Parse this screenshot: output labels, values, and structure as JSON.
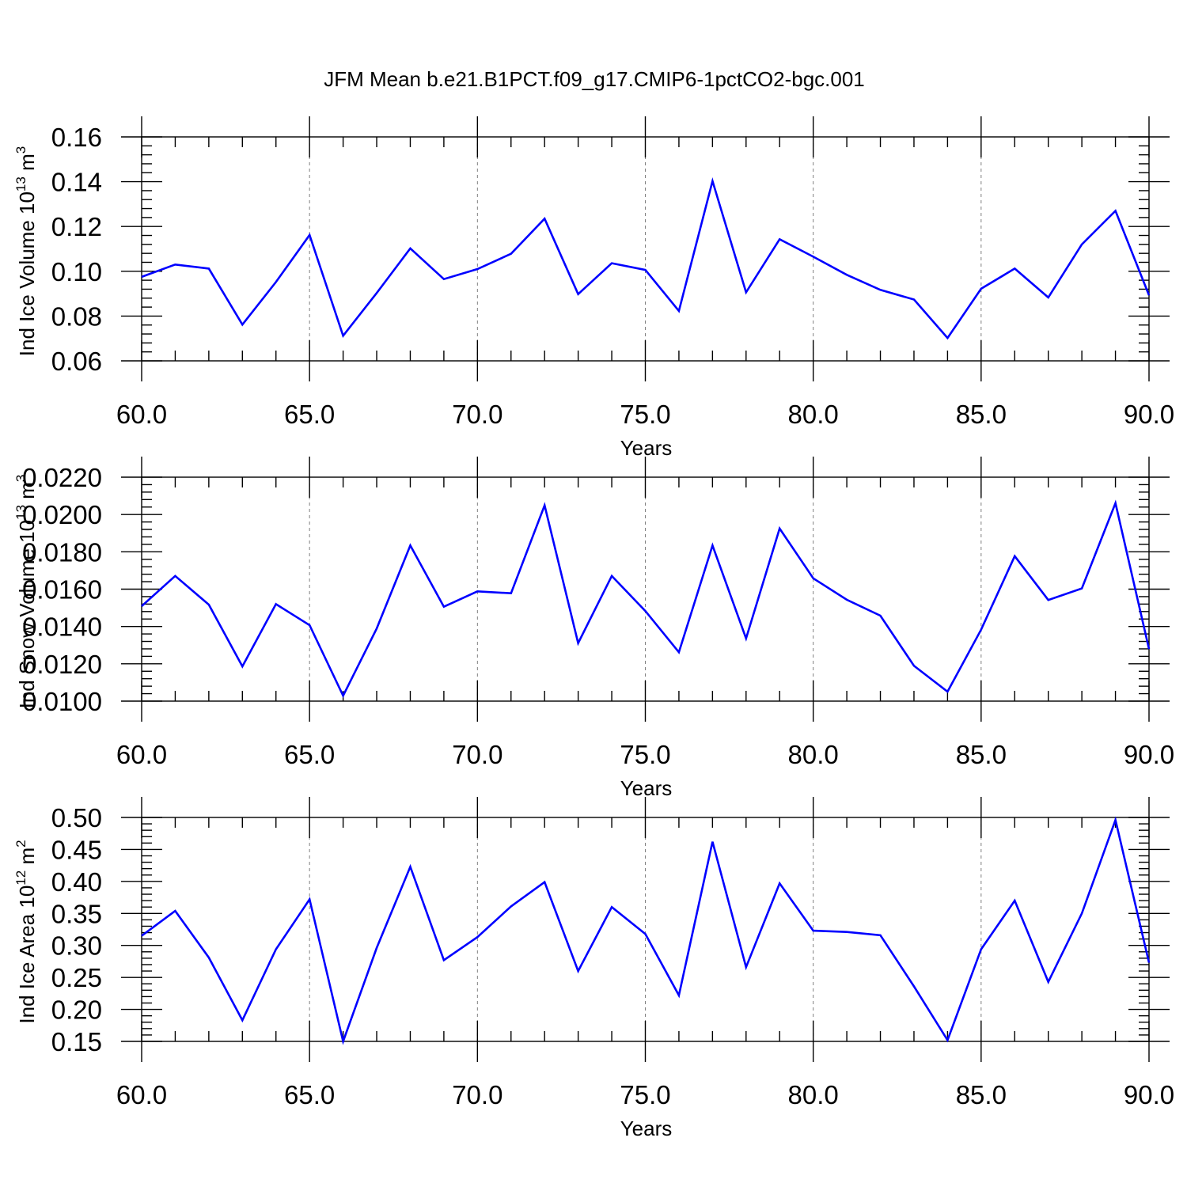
{
  "figure": {
    "title": "JFM Mean b.e21.B1PCT.f09_g17.CMIP6-1pctCO2-bgc.001",
    "line_color": "#0000ff",
    "axis_color": "#000000",
    "grid_color": "#808080"
  },
  "chart_data": [
    {
      "type": "line",
      "xlabel": "Years",
      "ylabel": "Ind Ice Volume 10",
      "ylabel_exp": "13",
      "ylabel_unit": " m",
      "ylabel_unit_exp": "3",
      "xlim": [
        60,
        90
      ],
      "ylim": [
        0.06,
        0.16
      ],
      "xticks": [
        60,
        65,
        70,
        75,
        80,
        85,
        90
      ],
      "xtick_labels": [
        "60.0",
        "65.0",
        "70.0",
        "75.0",
        "80.0",
        "85.0",
        "90.0"
      ],
      "yticks": [
        0.06,
        0.08,
        0.1,
        0.12,
        0.14,
        0.16
      ],
      "ytick_labels": [
        "0.06",
        "0.08",
        "0.10",
        "0.12",
        "0.14",
        "0.16"
      ],
      "x": [
        60,
        61,
        62,
        63,
        64,
        65,
        66,
        67,
        68,
        69,
        70,
        71,
        72,
        73,
        74,
        75,
        76,
        77,
        78,
        79,
        80,
        81,
        82,
        83,
        84,
        85,
        86,
        87,
        88,
        89,
        90
      ],
      "y": [
        0.0975,
        0.103,
        0.1012,
        0.0762,
        0.0952,
        0.1162,
        0.0712,
        0.0903,
        0.1102,
        0.0965,
        0.101,
        0.1078,
        0.1235,
        0.0898,
        0.1036,
        0.1006,
        0.0823,
        0.1403,
        0.0906,
        0.1143,
        0.1065,
        0.0984,
        0.0917,
        0.0874,
        0.0702,
        0.0922,
        0.1012,
        0.0883,
        0.112,
        0.127,
        0.0893
      ],
      "vgrid": [
        65,
        70,
        75,
        80,
        85
      ]
    },
    {
      "type": "line",
      "xlabel": "Years",
      "ylabel": "Ind Snow Volume 10",
      "ylabel_exp": "13",
      "ylabel_unit": " m",
      "ylabel_unit_exp": "3",
      "xlim": [
        60,
        90
      ],
      "ylim": [
        0.01,
        0.022
      ],
      "xticks": [
        60,
        65,
        70,
        75,
        80,
        85,
        90
      ],
      "xtick_labels": [
        "60.0",
        "65.0",
        "70.0",
        "75.0",
        "80.0",
        "85.0",
        "90.0"
      ],
      "yticks": [
        0.01,
        0.012,
        0.014,
        0.016,
        0.018,
        0.02,
        0.022
      ],
      "ytick_labels": [
        "0.0100",
        "0.0120",
        "0.0140",
        "0.0160",
        "0.0180",
        "0.0200",
        "0.0220"
      ],
      "x": [
        60,
        61,
        62,
        63,
        64,
        65,
        66,
        67,
        68,
        69,
        70,
        71,
        72,
        73,
        74,
        75,
        76,
        77,
        78,
        79,
        80,
        81,
        82,
        83,
        84,
        85,
        86,
        87,
        88,
        89,
        90
      ],
      "y": [
        0.01509,
        0.01671,
        0.01517,
        0.01186,
        0.0152,
        0.01407,
        0.01029,
        0.01389,
        0.01834,
        0.01506,
        0.01588,
        0.01578,
        0.02049,
        0.01311,
        0.01671,
        0.01483,
        0.01262,
        0.01834,
        0.01336,
        0.01925,
        0.01658,
        0.01543,
        0.01458,
        0.01189,
        0.01051,
        0.01383,
        0.01777,
        0.01542,
        0.01604,
        0.02061,
        0.01279
      ],
      "vgrid": [
        65,
        70,
        75,
        80,
        85
      ]
    },
    {
      "type": "line",
      "xlabel": "Years",
      "ylabel": "Ind Ice Area 10",
      "ylabel_exp": "12",
      "ylabel_unit": " m",
      "ylabel_unit_exp": "2",
      "xlim": [
        60,
        90
      ],
      "ylim": [
        0.15,
        0.5
      ],
      "xticks": [
        60,
        65,
        70,
        75,
        80,
        85,
        90
      ],
      "xtick_labels": [
        "60.0",
        "65.0",
        "70.0",
        "75.0",
        "80.0",
        "85.0",
        "90.0"
      ],
      "yticks": [
        0.15,
        0.2,
        0.25,
        0.3,
        0.35,
        0.4,
        0.45,
        0.5
      ],
      "ytick_labels": [
        "0.15",
        "0.20",
        "0.25",
        "0.30",
        "0.35",
        "0.40",
        "0.45",
        "0.50"
      ],
      "x": [
        60,
        61,
        62,
        63,
        64,
        65,
        66,
        67,
        68,
        69,
        70,
        71,
        72,
        73,
        74,
        75,
        76,
        77,
        78,
        79,
        80,
        81,
        82,
        83,
        84,
        85,
        86,
        87,
        88,
        89,
        90
      ],
      "y": [
        0.315,
        0.354,
        0.281,
        0.183,
        0.294,
        0.372,
        0.15,
        0.296,
        0.423,
        0.277,
        0.313,
        0.361,
        0.399,
        0.26,
        0.36,
        0.318,
        0.222,
        0.462,
        0.266,
        0.397,
        0.323,
        0.321,
        0.316,
        0.236,
        0.152,
        0.294,
        0.37,
        0.243,
        0.35,
        0.496,
        0.273
      ],
      "vgrid": [
        65,
        70,
        75,
        80,
        85
      ]
    }
  ]
}
